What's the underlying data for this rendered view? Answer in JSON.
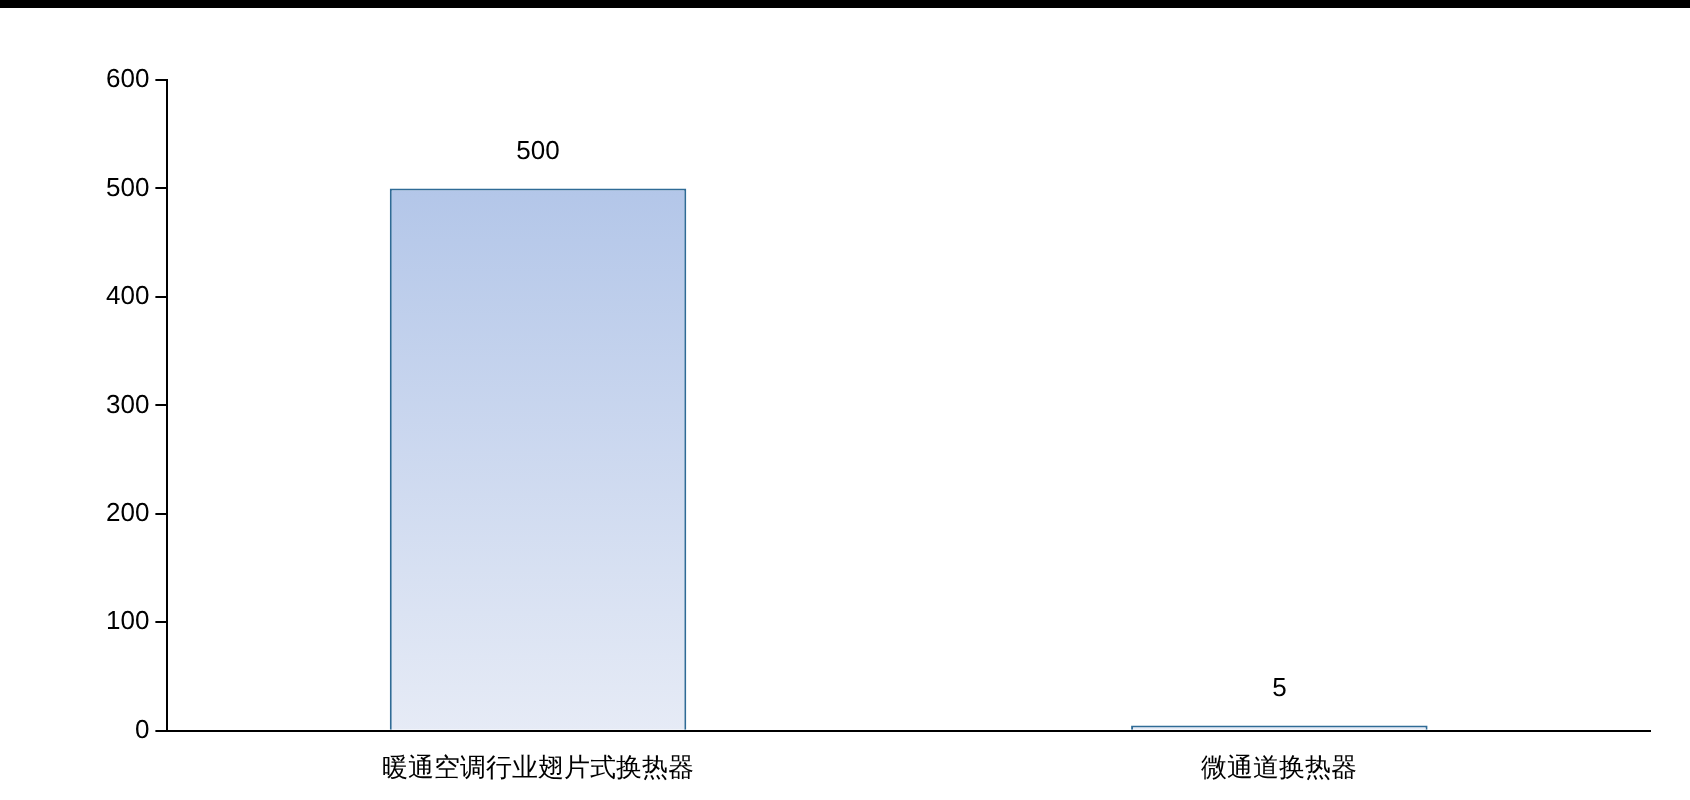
{
  "chart_data": {
    "type": "bar",
    "categories": [
      "暖通空调行业翅片式换热器",
      "微通道换热器"
    ],
    "values": [
      500,
      5
    ],
    "color": "#a9bfe6",
    "ylim": [
      0,
      600
    ],
    "yticks": [
      0,
      100,
      200,
      300,
      400,
      500,
      600
    ],
    "grid": false,
    "legend": false,
    "data_labels": true
  }
}
